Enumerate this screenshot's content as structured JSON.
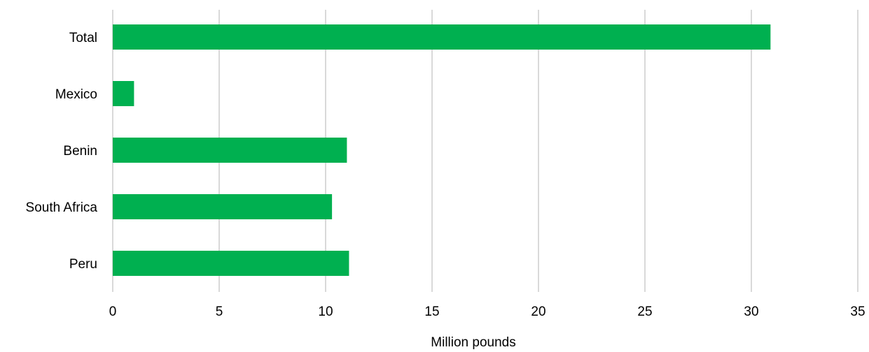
{
  "chart_data": {
    "type": "bar",
    "orientation": "horizontal",
    "title": "",
    "xlabel": "Million pounds",
    "ylabel": "",
    "categories": [
      "Total",
      "Mexico",
      "Benin",
      "South Africa",
      "Peru"
    ],
    "values": [
      30.9,
      1.0,
      11.0,
      10.3,
      11.1
    ],
    "xlim": [
      0,
      35
    ],
    "x_ticks": [
      "0",
      "5",
      "10",
      "15",
      "20",
      "25",
      "30",
      "35"
    ],
    "grid": "vertical",
    "legend": "none",
    "bar_color": "#00b050",
    "grid_color": "#d9d9d9"
  }
}
